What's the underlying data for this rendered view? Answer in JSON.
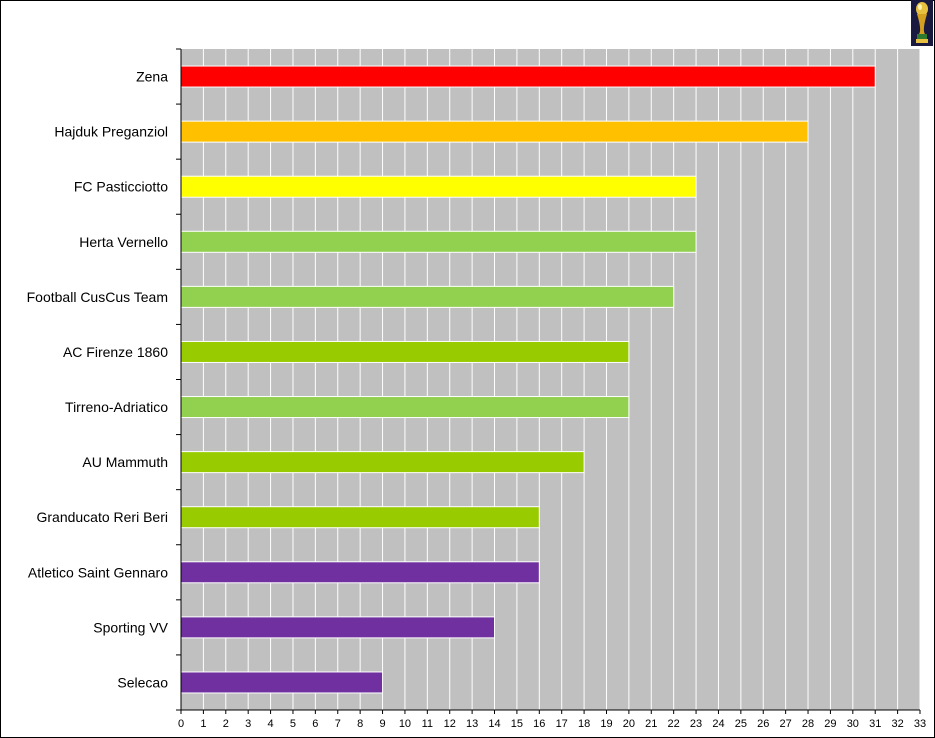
{
  "chart_data": {
    "type": "bar",
    "orientation": "horizontal",
    "title": "",
    "xlabel": "",
    "ylabel": "",
    "xlim": [
      0,
      33
    ],
    "ticks": [
      0,
      1,
      2,
      3,
      4,
      5,
      6,
      7,
      8,
      9,
      10,
      11,
      12,
      13,
      14,
      15,
      16,
      17,
      18,
      19,
      20,
      21,
      22,
      23,
      24,
      25,
      26,
      27,
      28,
      29,
      30,
      31,
      32,
      33
    ],
    "grid": true,
    "plot_background": "#c0c0c0",
    "grid_color": "#ffffff",
    "categories": [
      "Zena",
      "Hajduk Preganziol",
      "FC Pasticciotto",
      "Herta Vernello",
      "Football CusCus Team",
      "AC Firenze 1860",
      "Tirreno-Adriatico",
      "AU Mammuth",
      "Granducato Reri Beri",
      "Atletico Saint Gennaro",
      "Sporting VV",
      "Selecao"
    ],
    "values": [
      31,
      28,
      23,
      23,
      22,
      20,
      20,
      18,
      16,
      16,
      14,
      9
    ],
    "colors": [
      "#ff0000",
      "#ffc000",
      "#ffff00",
      "#92d050",
      "#92d050",
      "#99cc00",
      "#92d050",
      "#99cc00",
      "#99cc00",
      "#7030a0",
      "#7030a0",
      "#7030a0"
    ]
  },
  "logo": {
    "name": "trophy-icon"
  }
}
